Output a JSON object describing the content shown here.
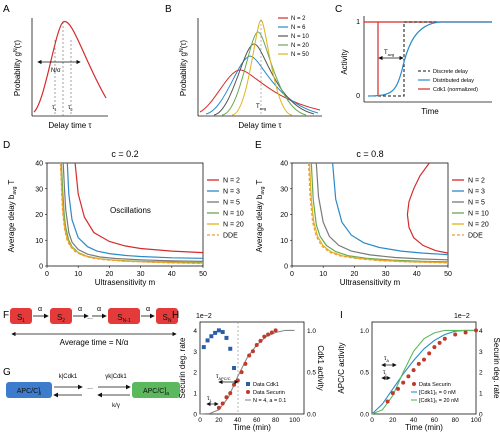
{
  "panels": {
    "A": {
      "letter": "A",
      "ylabel": "Probability g",
      "ylabel_sup": "N",
      "ylabel_tail": "(τ)",
      "xlabel": "Delay time τ",
      "ann_lo": "τ",
      "ann_lo_sub": "1",
      "ann_hi": "τ",
      "ann_hi_sub": "2",
      "width_label": "N/σ"
    },
    "B": {
      "letter": "B",
      "ylabel": "Probability g",
      "ylabel_sup": "N",
      "ylabel_tail": "(τ)",
      "xlabel": "Delay time τ",
      "tick": "T",
      "tick_sub": "avg",
      "legend": [
        "N = 2",
        "N = 6",
        "N = 10",
        "N = 20",
        "N = 50"
      ]
    },
    "C": {
      "letter": "C",
      "ylabel": "Activity",
      "xlabel": "Time",
      "y0": "0",
      "y1": "1",
      "tavg": "T",
      "tavg_sub": "avg",
      "legend": [
        "Discrete delay",
        "Distributed delay",
        "Cdk1 (normalized)"
      ]
    },
    "D": {
      "letter": "D",
      "title": "c = 0.2",
      "ylabel": "Average delay b",
      "ylabel_sub": "avg",
      "ylabel_tail": "T",
      "xlabel": "Ultrasensitivity m",
      "annotation": "Oscillations",
      "yticks": [
        "0",
        "10",
        "20",
        "30",
        "40"
      ],
      "xticks": [
        "0",
        "10",
        "20",
        "30",
        "40",
        "50"
      ],
      "legend": [
        "N = 2",
        "N = 3",
        "N = 5",
        "N = 10",
        "N = 20",
        "DDE"
      ]
    },
    "E": {
      "letter": "E",
      "title": "c = 0.8",
      "ylabel": "Average delay b",
      "ylabel_sub": "avg",
      "ylabel_tail": "T",
      "xlabel": "Ultrasensitivity m",
      "yticks": [
        "0",
        "10",
        "20",
        "30",
        "40"
      ],
      "xticks": [
        "0",
        "10",
        "20",
        "30",
        "40",
        "50"
      ],
      "legend": [
        "N = 2",
        "N = 3",
        "N = 5",
        "N = 10",
        "N = 20",
        "DDE"
      ]
    },
    "F": {
      "letter": "F",
      "states": [
        "S",
        "S",
        "S",
        "S",
        "S"
      ],
      "subs": [
        "1",
        "2",
        "",
        "N-1",
        "N"
      ],
      "rate": "α",
      "ellipsis": "...",
      "caption": "Average time = N/α"
    },
    "G": {
      "letter": "G",
      "left_box": "APC/C]",
      "left_sub": "i",
      "right_box": "APC/C]",
      "right_sub": "a",
      "top_left": "k|Cdk1",
      "top_right": "γk|Cdk1",
      "bottom": "k/γ"
    },
    "H": {
      "letter": "H",
      "scale": "1e−2",
      "ylabel": "Securin deg. rate",
      "ylabel2": "Cdk1 activity",
      "xlabel": "Time (min)",
      "tau1": "τ",
      "tau1_sub": "1",
      "tau2": "τ",
      "tau2_sub": "APC/C",
      "yticks": [
        "0",
        "1",
        "2",
        "3",
        "4"
      ],
      "y2ticks": [
        "0.0",
        "0.5",
        "1.0"
      ],
      "xticks": [
        "0",
        "20",
        "40",
        "60",
        "80",
        "100"
      ],
      "legend": [
        "Data Cdk1",
        "Data Securin",
        "N = 4, a = 0.1"
      ]
    },
    "I": {
      "letter": "I",
      "scale": "1e−2",
      "ylabel": "APC/C activity",
      "ylabel2": "Securin deg. rate",
      "xlabel": "Time (min)",
      "tauA": "τ",
      "tauA_sub": "A",
      "tauI": "τ",
      "tauI_sub": "I",
      "yticks": [
        "0.0",
        "0.5",
        "1.0"
      ],
      "y2ticks": [
        "0",
        "1",
        "2",
        "3",
        "4"
      ],
      "xticks": [
        "0",
        "20",
        "40",
        "60",
        "80",
        "100"
      ],
      "legend": [
        "Data Securin",
        "[Cdk1]₀ = 0 nM",
        "[Cdk1]₀ = 20 nM"
      ]
    }
  },
  "colors": {
    "n2": "#d62b2b",
    "n3": "#2a8ac9",
    "n5": "#7a7a7a",
    "n10": "#6aa84f",
    "n20": "#e0b31e",
    "dde": "#f09a3a",
    "red_box": "#e53a3a",
    "blue_box": "#3d7ccc",
    "green_box": "#5cb85c"
  },
  "chart_data": [
    {
      "panel": "D",
      "type": "line",
      "title": "c = 0.2",
      "xlabel": "Ultrasensitivity m",
      "ylabel": "Average delay b_avg T",
      "xlim": [
        0,
        50
      ],
      "ylim": [
        0,
        40
      ],
      "series": [
        {
          "name": "N = 2",
          "x": [
            9,
            10,
            12,
            15,
            20,
            25,
            30,
            40,
            50
          ],
          "y": [
            40,
            28,
            19,
            13,
            9.5,
            7.8,
            6.8,
            5.8,
            5.2
          ]
        },
        {
          "name": "N = 3",
          "x": [
            6.5,
            7,
            8,
            10,
            13,
            16,
            20,
            25,
            30,
            40,
            50
          ],
          "y": [
            40,
            28,
            18,
            11,
            7.5,
            5.8,
            4.8,
            4.1,
            3.7,
            3.2,
            3.0
          ]
        },
        {
          "name": "N = 5",
          "x": [
            5.2,
            5.6,
            6,
            7,
            8,
            10,
            13,
            17,
            22,
            30,
            40,
            50
          ],
          "y": [
            40,
            30,
            22,
            13,
            9.3,
            6.4,
            4.6,
            3.5,
            2.9,
            2.4,
            2.0,
            1.8
          ]
        },
        {
          "name": "N = 10",
          "x": [
            4.6,
            5,
            5.5,
            6,
            7,
            8,
            10,
            13,
            17,
            22,
            30,
            40,
            50
          ],
          "y": [
            40,
            30,
            20,
            15,
            10,
            7.5,
            5.2,
            3.7,
            2.8,
            2.2,
            1.8,
            1.5,
            1.3
          ]
        },
        {
          "name": "N = 20",
          "x": [
            4.4,
            4.8,
            5.2,
            5.8,
            6.5,
            7.5,
            9,
            11,
            14,
            18,
            24,
            32,
            40,
            50
          ],
          "y": [
            40,
            28,
            20,
            14,
            10.5,
            8,
            6,
            4.5,
            3.3,
            2.6,
            2,
            1.6,
            1.3,
            1.1
          ]
        },
        {
          "name": "DDE",
          "x": [
            4.3,
            4.7,
            5,
            5.6,
            6.3,
            7.3,
            8.8,
            11,
            14,
            18,
            24,
            32,
            40,
            50
          ],
          "y": [
            40,
            28,
            21,
            14.5,
            10.5,
            7.8,
            5.8,
            4.3,
            3.2,
            2.5,
            1.9,
            1.5,
            1.2,
            1.0
          ]
        }
      ]
    },
    {
      "panel": "E",
      "type": "line",
      "title": "c = 0.8",
      "xlabel": "Ultrasensitivity m",
      "ylabel": "Average delay b_avg T",
      "xlim": [
        0,
        50
      ],
      "ylim": [
        0,
        40
      ],
      "series": [
        {
          "name": "N = 2",
          "x": [
            44,
            41,
            39,
            37.5,
            37,
            37.5,
            39,
            42,
            46,
            50
          ],
          "y": [
            40,
            35,
            30,
            25,
            20,
            15,
            11,
            8,
            6,
            5
          ]
        },
        {
          "name": "N = 3",
          "x": [
            13,
            14,
            16,
            19,
            23,
            28,
            35,
            42,
            50
          ],
          "y": [
            40,
            26,
            17,
            12,
            9,
            7.2,
            5.8,
            5,
            4.4
          ]
        },
        {
          "name": "N = 5",
          "x": [
            7.8,
            8.5,
            10,
            12,
            15,
            19,
            25,
            33,
            42,
            50
          ],
          "y": [
            40,
            27,
            17,
            11.5,
            8,
            5.8,
            4.3,
            3.3,
            2.7,
            2.4
          ]
        },
        {
          "name": "N = 10",
          "x": [
            6.2,
            6.8,
            7.8,
            9,
            11,
            14,
            18,
            24,
            32,
            42,
            50
          ],
          "y": [
            40,
            26,
            16,
            11.5,
            8,
            5.6,
            4,
            3,
            2.3,
            1.8,
            1.6
          ]
        },
        {
          "name": "N = 20",
          "x": [
            5.6,
            6.2,
            7,
            8.2,
            10,
            12.5,
            16,
            21,
            28,
            37,
            50
          ],
          "y": [
            40,
            26,
            17,
            11.5,
            7.8,
            5.5,
            4,
            3,
            2.2,
            1.7,
            1.3
          ]
        },
        {
          "name": "DDE",
          "x": [
            5.3,
            5.8,
            6.6,
            7.8,
            9.5,
            12,
            15.5,
            20.5,
            27.5,
            37,
            50
          ],
          "y": [
            40,
            27,
            17,
            11.5,
            7.8,
            5.4,
            3.9,
            2.9,
            2.1,
            1.6,
            1.2
          ]
        }
      ]
    },
    {
      "panel": "H",
      "type": "scatter",
      "xlabel": "Time (min)",
      "ylabel": "Securin deg. rate",
      "xlim": [
        0,
        110
      ],
      "ylim": [
        0,
        4.4
      ],
      "y2lim": [
        0,
        1.1
      ],
      "series": [
        {
          "name": "Data Cdk1",
          "axis": "right",
          "x": [
            4,
            8,
            12,
            16,
            20,
            24,
            28,
            32,
            36
          ],
          "y": [
            0.8,
            0.88,
            0.93,
            0.97,
            1.0,
            0.98,
            0.91,
            0.78,
            0.55
          ]
        },
        {
          "name": "Data Securin",
          "axis": "left",
          "x": [
            20,
            24,
            28,
            32,
            36,
            40,
            44,
            48,
            52,
            56,
            60,
            64,
            68,
            72,
            76,
            80
          ],
          "y": [
            0.3,
            0.5,
            0.8,
            1.0,
            1.4,
            1.6,
            2.0,
            2.4,
            2.8,
            3.0,
            3.3,
            3.5,
            3.7,
            3.8,
            3.9,
            4.0
          ]
        },
        {
          "name": "N = 4, a = 0.1",
          "axis": "left",
          "x": [
            0,
            10,
            20,
            30,
            40,
            50,
            60,
            70,
            80,
            90,
            100
          ],
          "y": [
            0.0,
            0.02,
            0.2,
            0.8,
            1.8,
            2.7,
            3.3,
            3.7,
            3.9,
            4.0,
            4.0
          ]
        }
      ]
    },
    {
      "panel": "I",
      "type": "line",
      "xlabel": "Time (min)",
      "ylabel": "APC/C activity",
      "xlim": [
        0,
        100
      ],
      "ylim": [
        0,
        1.1
      ],
      "y2lim": [
        0,
        4.4
      ],
      "series": [
        {
          "name": "Data Securin",
          "axis": "right",
          "x": [
            15,
            20,
            25,
            30,
            35,
            40,
            45,
            50,
            55,
            60,
            65,
            70,
            80,
            90,
            100
          ],
          "y": [
            0.6,
            1.0,
            1.2,
            1.5,
            1.8,
            2.1,
            2.4,
            2.6,
            2.9,
            3.2,
            3.4,
            3.6,
            3.8,
            3.9,
            4.0
          ]
        },
        {
          "name": "[Cdk1]₀ = 0 nM",
          "axis": "left",
          "x": [
            0,
            10,
            20,
            30,
            40,
            50,
            60,
            70,
            80,
            90,
            100
          ],
          "y": [
            0.0,
            0.12,
            0.3,
            0.48,
            0.64,
            0.78,
            0.88,
            0.95,
            0.99,
            1.0,
            1.0
          ]
        },
        {
          "name": "[Cdk1]₀ = 20 nM",
          "axis": "left",
          "x": [
            0,
            10,
            20,
            30,
            40,
            50,
            60,
            70,
            80,
            90,
            100
          ],
          "y": [
            0.0,
            0.05,
            0.22,
            0.5,
            0.75,
            0.9,
            0.97,
            1.0,
            1.0,
            1.0,
            1.0
          ]
        }
      ]
    }
  ]
}
